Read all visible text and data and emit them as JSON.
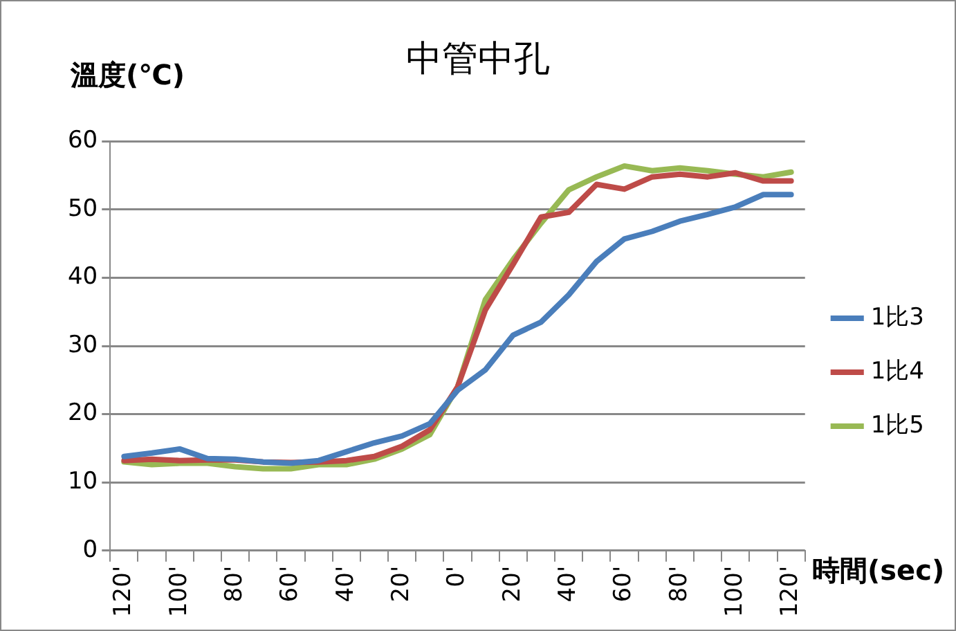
{
  "chart_data": {
    "type": "line",
    "title": "中管中孔",
    "ylabel": "溫度(℃)",
    "xlabel": "時間(sec)",
    "categories": [
      "120'",
      null,
      "100'",
      null,
      "80'",
      null,
      "60'",
      null,
      "40'",
      null,
      "20'",
      null,
      "0'",
      null,
      "20'",
      null,
      "40'",
      null,
      "60'",
      null,
      "80'",
      null,
      "100'",
      null,
      "120'"
    ],
    "series": [
      {
        "name": "1比3",
        "color": "#4a7ebb",
        "values": [
          13.8,
          14.3,
          14.9,
          13.5,
          13.4,
          13,
          12.8,
          13.2,
          14.5,
          15.8,
          16.8,
          18.6,
          23.5,
          26.5,
          31.6,
          33.5,
          37.5,
          42.4,
          45.7,
          46.8,
          48.3,
          49.3,
          50.4,
          52.2,
          52.2
        ]
      },
      {
        "name": "1比4",
        "color": "#be4b48",
        "values": [
          13.2,
          13.4,
          13.2,
          13.3,
          13.3,
          13,
          12.9,
          13,
          13.2,
          13.8,
          15.3,
          17.7,
          24,
          35.3,
          42,
          48.9,
          49.6,
          53.7,
          53,
          54.8,
          55.2,
          54.8,
          55.4,
          54.2,
          54.2
        ]
      },
      {
        "name": "1比5",
        "color": "#98b954",
        "values": [
          13,
          12.6,
          12.8,
          12.8,
          12.3,
          12,
          12,
          12.6,
          12.6,
          13.4,
          14.9,
          17,
          24,
          36.8,
          42.7,
          48,
          52.9,
          54.8,
          56.4,
          55.7,
          56.1,
          55.7,
          55.2,
          54.8,
          55.5
        ]
      }
    ],
    "ylim": [
      0,
      60
    ],
    "yticks": [
      0,
      10,
      20,
      30,
      40,
      50,
      60
    ],
    "grid": "y",
    "legend": "right",
    "marker": "none",
    "line_style": "solid"
  }
}
